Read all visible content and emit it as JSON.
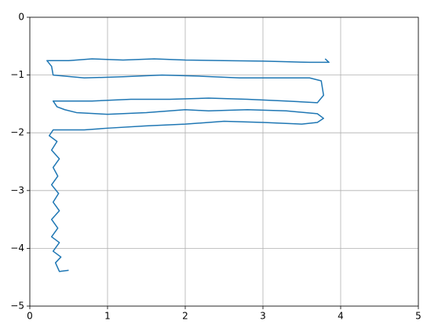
{
  "chart_data": {
    "type": "line",
    "x": [
      0.5,
      0.38,
      0.33,
      0.4,
      0.3,
      0.38,
      0.28,
      0.36,
      0.28,
      0.38,
      0.3,
      0.37,
      0.28,
      0.36,
      0.3,
      0.38,
      0.28,
      0.35,
      0.25,
      0.3,
      0.7,
      1.0,
      1.5,
      2.0,
      2.5,
      3.0,
      3.5,
      3.7,
      3.78,
      3.7,
      3.3,
      2.8,
      2.3,
      2.0,
      1.5,
      1.0,
      0.6,
      0.45,
      0.35,
      0.3,
      0.8,
      1.3,
      1.8,
      2.3,
      2.8,
      3.3,
      3.7,
      3.78,
      3.75,
      3.6,
      3.2,
      2.7,
      2.2,
      1.7,
      1.2,
      0.7,
      0.3,
      0.28,
      0.22,
      0.5,
      0.8,
      1.2,
      1.6,
      2.0,
      2.5,
      3.0,
      3.3,
      3.6,
      3.85,
      3.8
    ],
    "series": [
      {
        "color": "#1f77b4",
        "values": [
          -4.38,
          -4.4,
          -4.25,
          -4.15,
          -4.05,
          -3.9,
          -3.8,
          -3.65,
          -3.5,
          -3.35,
          -3.2,
          -3.05,
          -2.9,
          -2.75,
          -2.6,
          -2.45,
          -2.3,
          -2.15,
          -2.05,
          -1.95,
          -1.95,
          -1.92,
          -1.88,
          -1.85,
          -1.8,
          -1.82,
          -1.85,
          -1.82,
          -1.75,
          -1.67,
          -1.62,
          -1.6,
          -1.62,
          -1.6,
          -1.65,
          -1.68,
          -1.65,
          -1.6,
          -1.55,
          -1.45,
          -1.45,
          -1.42,
          -1.42,
          -1.4,
          -1.42,
          -1.45,
          -1.48,
          -1.35,
          -1.1,
          -1.05,
          -1.05,
          -1.05,
          -1.02,
          -1.0,
          -1.03,
          -1.05,
          -1.0,
          -0.85,
          -0.75,
          -0.75,
          -0.72,
          -0.74,
          -0.72,
          -0.74,
          -0.75,
          -0.76,
          -0.77,
          -0.78,
          -0.78,
          -0.72
        ]
      }
    ],
    "xlim": [
      0,
      5
    ],
    "xticks": [
      0,
      1,
      2,
      3,
      4,
      5
    ],
    "ylim": [
      -5,
      0
    ],
    "yticks": [
      {
        "value": -5,
        "label": "−5"
      },
      {
        "value": -4,
        "label": "−4"
      },
      {
        "value": -3,
        "label": "−3"
      },
      {
        "value": -2,
        "label": "−2"
      },
      {
        "value": -1,
        "label": "−1"
      },
      0
    ],
    "grid": true
  }
}
